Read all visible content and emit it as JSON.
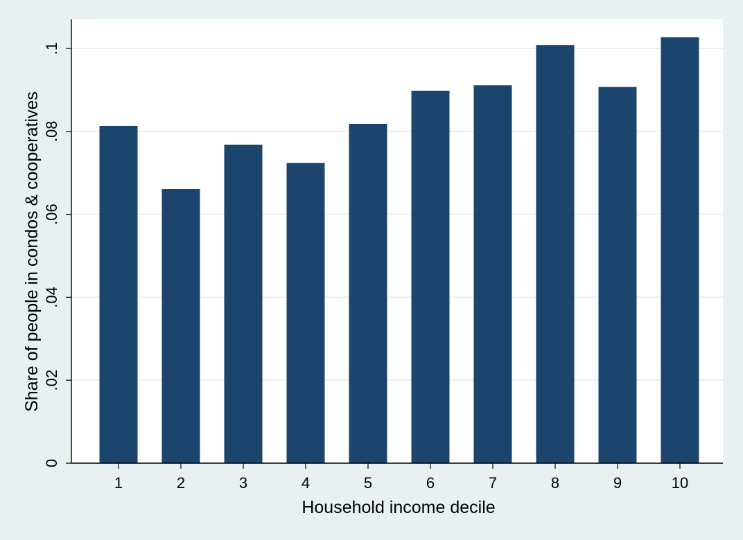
{
  "chart_data": {
    "type": "bar",
    "title": "",
    "xlabel": "Household income decile",
    "ylabel": "Share of people in condos & cooperatives",
    "categories": [
      "1",
      "2",
      "3",
      "4",
      "5",
      "6",
      "7",
      "8",
      "9",
      "10"
    ],
    "values": [
      0.0813,
      0.0661,
      0.0768,
      0.0724,
      0.0818,
      0.0898,
      0.0911,
      0.1008,
      0.0907,
      0.1027
    ],
    "ylim": [
      0,
      0.107
    ],
    "yticks": [
      0,
      0.02,
      0.04,
      0.06,
      0.08,
      0.1
    ],
    "ytick_labels": [
      "0",
      ".02",
      ".04",
      ".06",
      ".08",
      ".1"
    ],
    "grid": true,
    "colors": {
      "bar": "#1c456e",
      "plot_background": "#ffffff",
      "page_background": "#e9f0f2",
      "grid": "#e9f0f2",
      "axis": "#000000"
    }
  }
}
